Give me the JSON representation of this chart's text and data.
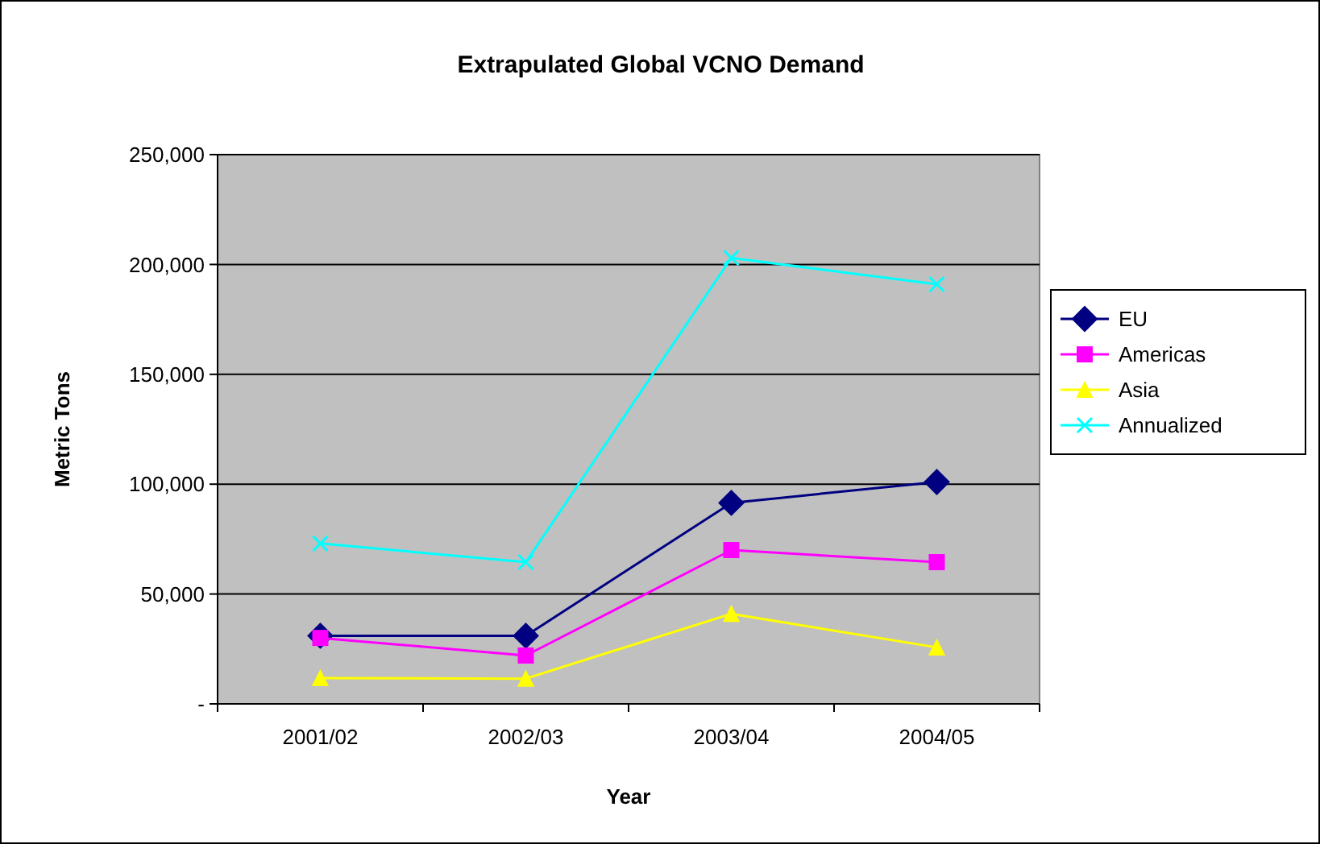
{
  "chart_data": {
    "type": "line",
    "title": "Extrapulated Global VCNO Demand",
    "xlabel": "Year",
    "ylabel": "Metric Tons",
    "categories": [
      "2001/02",
      "2002/03",
      "2003/04",
      "2004/05"
    ],
    "series": [
      {
        "name": "EU",
        "color": "#000080",
        "marker": "diamond",
        "values": [
          31000,
          31000,
          91500,
          101000
        ]
      },
      {
        "name": "Americas",
        "color": "#ff00ff",
        "marker": "square",
        "values": [
          30000,
          22000,
          70000,
          64500
        ]
      },
      {
        "name": "Asia",
        "color": "#ffff00",
        "marker": "triangle",
        "values": [
          11700,
          11500,
          41000,
          25700
        ]
      },
      {
        "name": "Annualized",
        "color": "#00ffff",
        "marker": "cross",
        "values": [
          73000,
          64500,
          203000,
          191000
        ]
      }
    ],
    "ylim": [
      0,
      250000
    ],
    "yticks": [
      {
        "value": 0,
        "label": "-"
      },
      {
        "value": 50000,
        "label": "50,000"
      },
      {
        "value": 100000,
        "label": "100,000"
      },
      {
        "value": 150000,
        "label": "150,000"
      },
      {
        "value": 200000,
        "label": "200,000"
      },
      {
        "value": 250000,
        "label": "250,000"
      }
    ],
    "grid": "y",
    "legend": "right"
  }
}
